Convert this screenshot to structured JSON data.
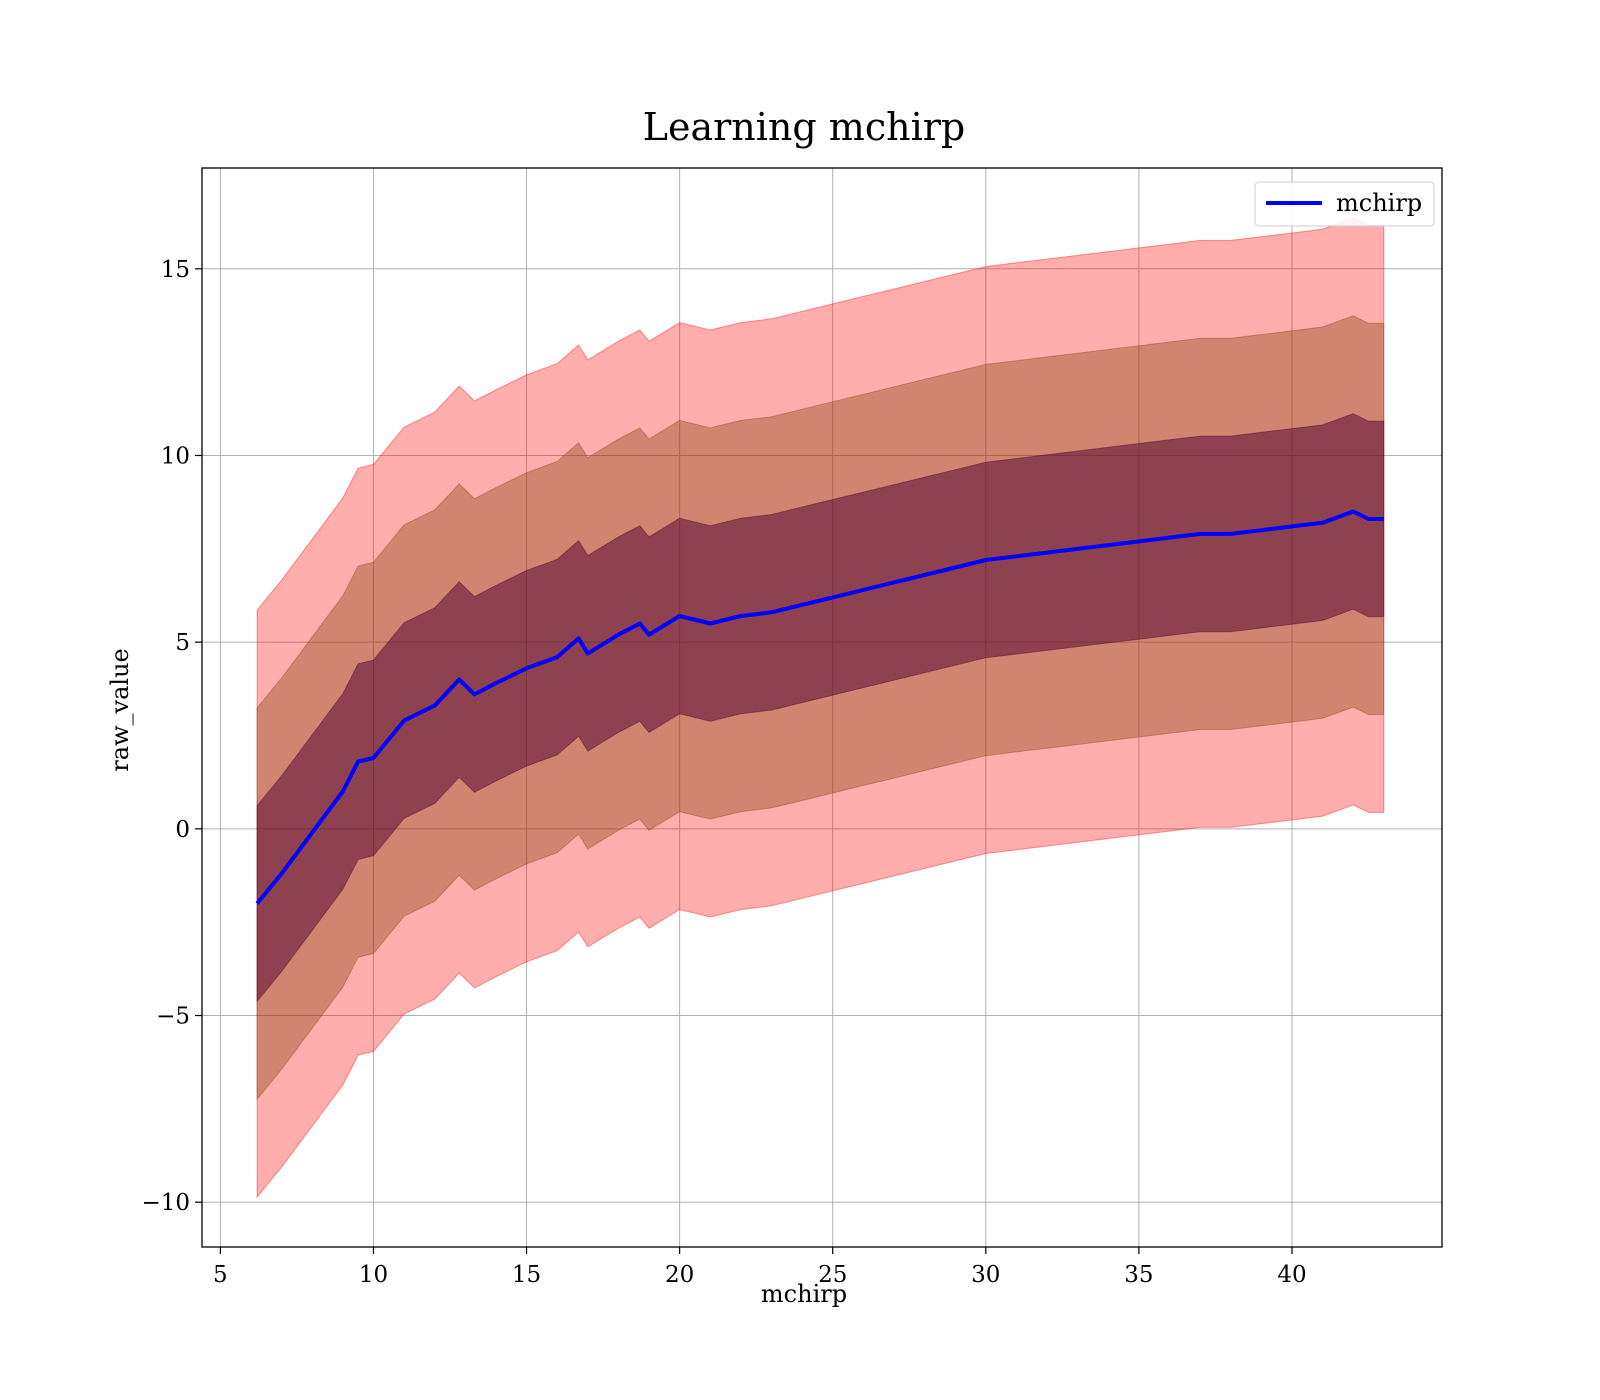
{
  "chart_data": {
    "type": "line",
    "title": "Learning mchirp",
    "xlabel": "mchirp",
    "ylabel": "raw_value",
    "xlim": [
      4.4,
      44.9
    ],
    "ylim": [
      -11.2,
      17.7
    ],
    "xticks": [
      5,
      10,
      15,
      20,
      25,
      30,
      35,
      40
    ],
    "yticks": [
      -10,
      -5,
      0,
      5,
      10,
      15
    ],
    "ytick_labels": [
      "−10",
      "−5",
      "0",
      "5",
      "10",
      "15"
    ],
    "grid": true,
    "legend_position": "top-right",
    "colors": {
      "mean_line": "#0000ff",
      "band_3sigma": "#ff0000",
      "band_2sigma": "#8b4513",
      "band_1sigma": "#4b0030"
    },
    "series": [
      {
        "name": "mchirp",
        "x": [
          6.2,
          7,
          8,
          9,
          9.5,
          10,
          11,
          12,
          12.8,
          13.3,
          14,
          15,
          16,
          16.7,
          17,
          18,
          18.7,
          19,
          20,
          21,
          22,
          23,
          24,
          25,
          26,
          27,
          28,
          29,
          30,
          31,
          32,
          33,
          34,
          35,
          36,
          37,
          38,
          39,
          40,
          41,
          42,
          42.5,
          43
        ],
        "mean": [
          -2.0,
          -1.2,
          -0.1,
          1.0,
          1.8,
          1.9,
          2.9,
          3.3,
          4.0,
          3.6,
          3.9,
          4.3,
          4.6,
          5.1,
          4.7,
          5.2,
          5.5,
          5.2,
          5.7,
          5.5,
          5.7,
          5.8,
          6.0,
          6.2,
          6.4,
          6.6,
          6.8,
          7.0,
          7.2,
          7.3,
          7.4,
          7.5,
          7.6,
          7.7,
          7.8,
          7.9,
          7.9,
          8.0,
          8.1,
          8.2,
          8.5,
          8.3,
          8.3
        ],
        "sigma": [
          2.62,
          2.62,
          2.62,
          2.62,
          2.62,
          2.62,
          2.62,
          2.62,
          2.62,
          2.62,
          2.62,
          2.62,
          2.62,
          2.62,
          2.62,
          2.62,
          2.62,
          2.62,
          2.62,
          2.62,
          2.62,
          2.62,
          2.62,
          2.62,
          2.62,
          2.62,
          2.62,
          2.62,
          2.62,
          2.62,
          2.62,
          2.62,
          2.62,
          2.62,
          2.62,
          2.62,
          2.62,
          2.62,
          2.62,
          2.62,
          2.62,
          2.62,
          2.62
        ]
      }
    ]
  }
}
